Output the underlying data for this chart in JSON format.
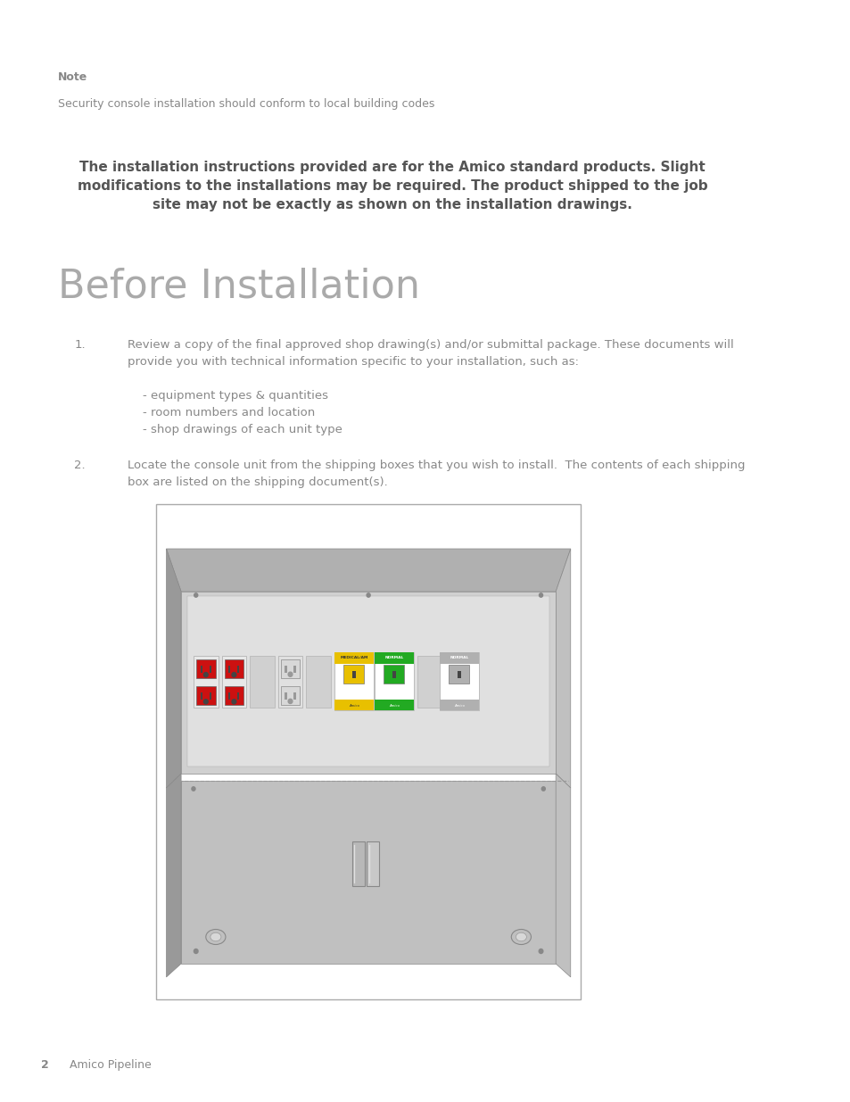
{
  "background_color": "#ffffff",
  "page_width": 9.54,
  "page_height": 12.35,
  "note_label": "Note",
  "note_label_color": "#888888",
  "note_label_fontsize": 9,
  "note_text": "Security console installation should conform to local building codes",
  "note_text_color": "#888888",
  "note_text_fontsize": 9,
  "warning_text": "The installation instructions provided are for the Amico standard products. Slight\nmodifications to the installations may be required. The product shipped to the job\nsite may not be exactly as shown on the installation drawings.",
  "warning_text_color": "#555555",
  "warning_text_fontsize": 11,
  "section_title": "Before Installation",
  "section_title_color": "#aaaaaa",
  "section_title_fontsize": 32,
  "item1_num": "1.",
  "item1_text": "Review a copy of the final approved shop drawing(s) and/or submittal package. These documents will\nprovide you with technical information specific to your installation, such as:\n\n    - equipment types & quantities\n    - room numbers and location\n    - shop drawings of each unit type",
  "item2_num": "2.",
  "item2_text": "Locate the console unit from the shipping boxes that you wish to install.  The contents of each shipping\nbox are listed on the shipping document(s).",
  "item_num_color": "#888888",
  "item_text_color": "#888888",
  "item_fontsize": 9.5,
  "footer_page_num": "2",
  "footer_text": "Amico Pipeline",
  "footer_color": "#888888",
  "footer_fontsize": 9,
  "box_outline_color": "#aaaaaa",
  "red_outlet_color": "#cc0000",
  "yellow_device_color": "#e8c000",
  "green_device_color": "#22aa22"
}
